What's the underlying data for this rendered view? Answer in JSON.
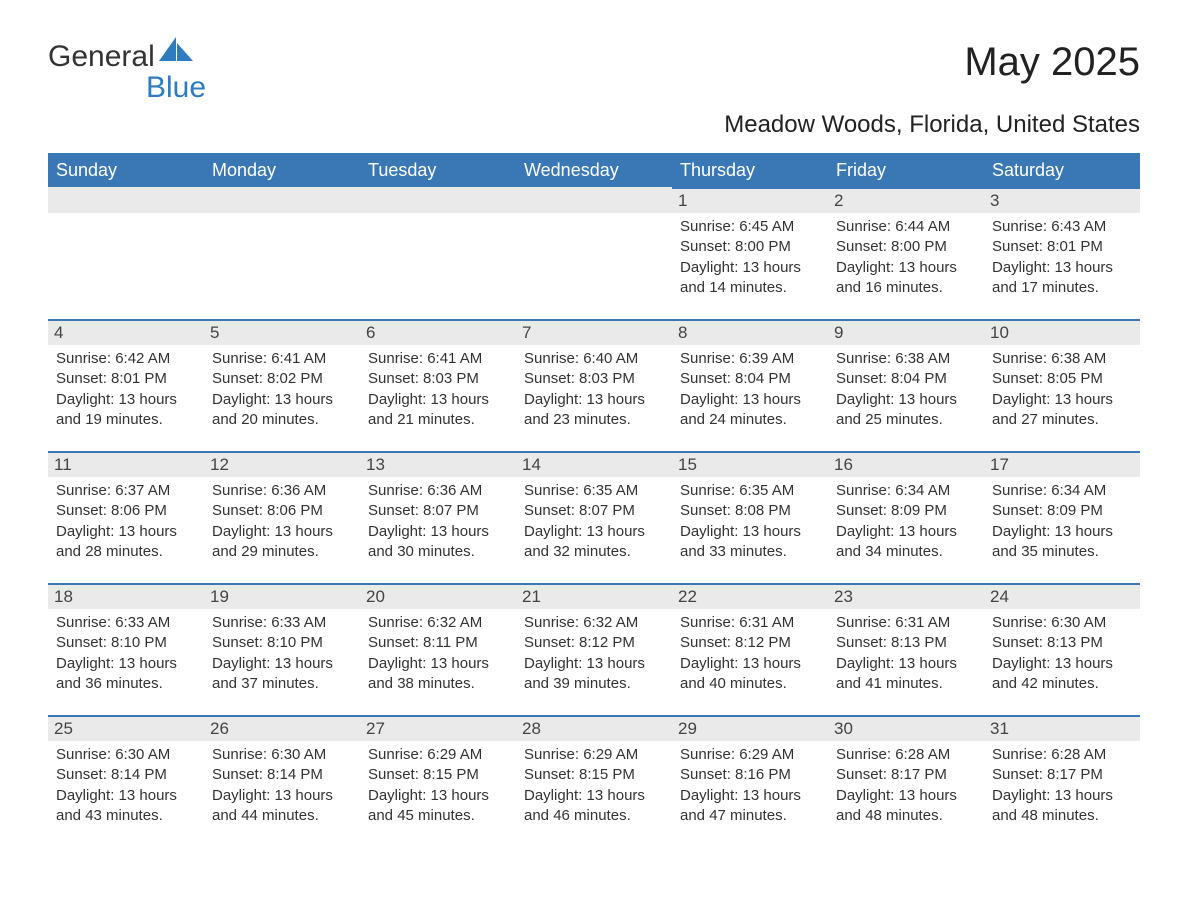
{
  "logo": {
    "word1": "General",
    "word2": "Blue"
  },
  "title": "May 2025",
  "location": "Meadow Woods, Florida, United States",
  "colors": {
    "header_bg": "#3a78b5",
    "band_bg": "#eaeaea",
    "text": "#333333",
    "accent": "#2f7bbf"
  },
  "dayHeaders": [
    "Sunday",
    "Monday",
    "Tuesday",
    "Wednesday",
    "Thursday",
    "Friday",
    "Saturday"
  ],
  "weeks": [
    [
      {
        "day": "",
        "sunrise": "",
        "sunset": "",
        "daylight": ""
      },
      {
        "day": "",
        "sunrise": "",
        "sunset": "",
        "daylight": ""
      },
      {
        "day": "",
        "sunrise": "",
        "sunset": "",
        "daylight": ""
      },
      {
        "day": "",
        "sunrise": "",
        "sunset": "",
        "daylight": ""
      },
      {
        "day": "1",
        "sunrise": "Sunrise: 6:45 AM",
        "sunset": "Sunset: 8:00 PM",
        "daylight": "Daylight: 13 hours and 14 minutes."
      },
      {
        "day": "2",
        "sunrise": "Sunrise: 6:44 AM",
        "sunset": "Sunset: 8:00 PM",
        "daylight": "Daylight: 13 hours and 16 minutes."
      },
      {
        "day": "3",
        "sunrise": "Sunrise: 6:43 AM",
        "sunset": "Sunset: 8:01 PM",
        "daylight": "Daylight: 13 hours and 17 minutes."
      }
    ],
    [
      {
        "day": "4",
        "sunrise": "Sunrise: 6:42 AM",
        "sunset": "Sunset: 8:01 PM",
        "daylight": "Daylight: 13 hours and 19 minutes."
      },
      {
        "day": "5",
        "sunrise": "Sunrise: 6:41 AM",
        "sunset": "Sunset: 8:02 PM",
        "daylight": "Daylight: 13 hours and 20 minutes."
      },
      {
        "day": "6",
        "sunrise": "Sunrise: 6:41 AM",
        "sunset": "Sunset: 8:03 PM",
        "daylight": "Daylight: 13 hours and 21 minutes."
      },
      {
        "day": "7",
        "sunrise": "Sunrise: 6:40 AM",
        "sunset": "Sunset: 8:03 PM",
        "daylight": "Daylight: 13 hours and 23 minutes."
      },
      {
        "day": "8",
        "sunrise": "Sunrise: 6:39 AM",
        "sunset": "Sunset: 8:04 PM",
        "daylight": "Daylight: 13 hours and 24 minutes."
      },
      {
        "day": "9",
        "sunrise": "Sunrise: 6:38 AM",
        "sunset": "Sunset: 8:04 PM",
        "daylight": "Daylight: 13 hours and 25 minutes."
      },
      {
        "day": "10",
        "sunrise": "Sunrise: 6:38 AM",
        "sunset": "Sunset: 8:05 PM",
        "daylight": "Daylight: 13 hours and 27 minutes."
      }
    ],
    [
      {
        "day": "11",
        "sunrise": "Sunrise: 6:37 AM",
        "sunset": "Sunset: 8:06 PM",
        "daylight": "Daylight: 13 hours and 28 minutes."
      },
      {
        "day": "12",
        "sunrise": "Sunrise: 6:36 AM",
        "sunset": "Sunset: 8:06 PM",
        "daylight": "Daylight: 13 hours and 29 minutes."
      },
      {
        "day": "13",
        "sunrise": "Sunrise: 6:36 AM",
        "sunset": "Sunset: 8:07 PM",
        "daylight": "Daylight: 13 hours and 30 minutes."
      },
      {
        "day": "14",
        "sunrise": "Sunrise: 6:35 AM",
        "sunset": "Sunset: 8:07 PM",
        "daylight": "Daylight: 13 hours and 32 minutes."
      },
      {
        "day": "15",
        "sunrise": "Sunrise: 6:35 AM",
        "sunset": "Sunset: 8:08 PM",
        "daylight": "Daylight: 13 hours and 33 minutes."
      },
      {
        "day": "16",
        "sunrise": "Sunrise: 6:34 AM",
        "sunset": "Sunset: 8:09 PM",
        "daylight": "Daylight: 13 hours and 34 minutes."
      },
      {
        "day": "17",
        "sunrise": "Sunrise: 6:34 AM",
        "sunset": "Sunset: 8:09 PM",
        "daylight": "Daylight: 13 hours and 35 minutes."
      }
    ],
    [
      {
        "day": "18",
        "sunrise": "Sunrise: 6:33 AM",
        "sunset": "Sunset: 8:10 PM",
        "daylight": "Daylight: 13 hours and 36 minutes."
      },
      {
        "day": "19",
        "sunrise": "Sunrise: 6:33 AM",
        "sunset": "Sunset: 8:10 PM",
        "daylight": "Daylight: 13 hours and 37 minutes."
      },
      {
        "day": "20",
        "sunrise": "Sunrise: 6:32 AM",
        "sunset": "Sunset: 8:11 PM",
        "daylight": "Daylight: 13 hours and 38 minutes."
      },
      {
        "day": "21",
        "sunrise": "Sunrise: 6:32 AM",
        "sunset": "Sunset: 8:12 PM",
        "daylight": "Daylight: 13 hours and 39 minutes."
      },
      {
        "day": "22",
        "sunrise": "Sunrise: 6:31 AM",
        "sunset": "Sunset: 8:12 PM",
        "daylight": "Daylight: 13 hours and 40 minutes."
      },
      {
        "day": "23",
        "sunrise": "Sunrise: 6:31 AM",
        "sunset": "Sunset: 8:13 PM",
        "daylight": "Daylight: 13 hours and 41 minutes."
      },
      {
        "day": "24",
        "sunrise": "Sunrise: 6:30 AM",
        "sunset": "Sunset: 8:13 PM",
        "daylight": "Daylight: 13 hours and 42 minutes."
      }
    ],
    [
      {
        "day": "25",
        "sunrise": "Sunrise: 6:30 AM",
        "sunset": "Sunset: 8:14 PM",
        "daylight": "Daylight: 13 hours and 43 minutes."
      },
      {
        "day": "26",
        "sunrise": "Sunrise: 6:30 AM",
        "sunset": "Sunset: 8:14 PM",
        "daylight": "Daylight: 13 hours and 44 minutes."
      },
      {
        "day": "27",
        "sunrise": "Sunrise: 6:29 AM",
        "sunset": "Sunset: 8:15 PM",
        "daylight": "Daylight: 13 hours and 45 minutes."
      },
      {
        "day": "28",
        "sunrise": "Sunrise: 6:29 AM",
        "sunset": "Sunset: 8:15 PM",
        "daylight": "Daylight: 13 hours and 46 minutes."
      },
      {
        "day": "29",
        "sunrise": "Sunrise: 6:29 AM",
        "sunset": "Sunset: 8:16 PM",
        "daylight": "Daylight: 13 hours and 47 minutes."
      },
      {
        "day": "30",
        "sunrise": "Sunrise: 6:28 AM",
        "sunset": "Sunset: 8:17 PM",
        "daylight": "Daylight: 13 hours and 48 minutes."
      },
      {
        "day": "31",
        "sunrise": "Sunrise: 6:28 AM",
        "sunset": "Sunset: 8:17 PM",
        "daylight": "Daylight: 13 hours and 48 minutes."
      }
    ]
  ]
}
